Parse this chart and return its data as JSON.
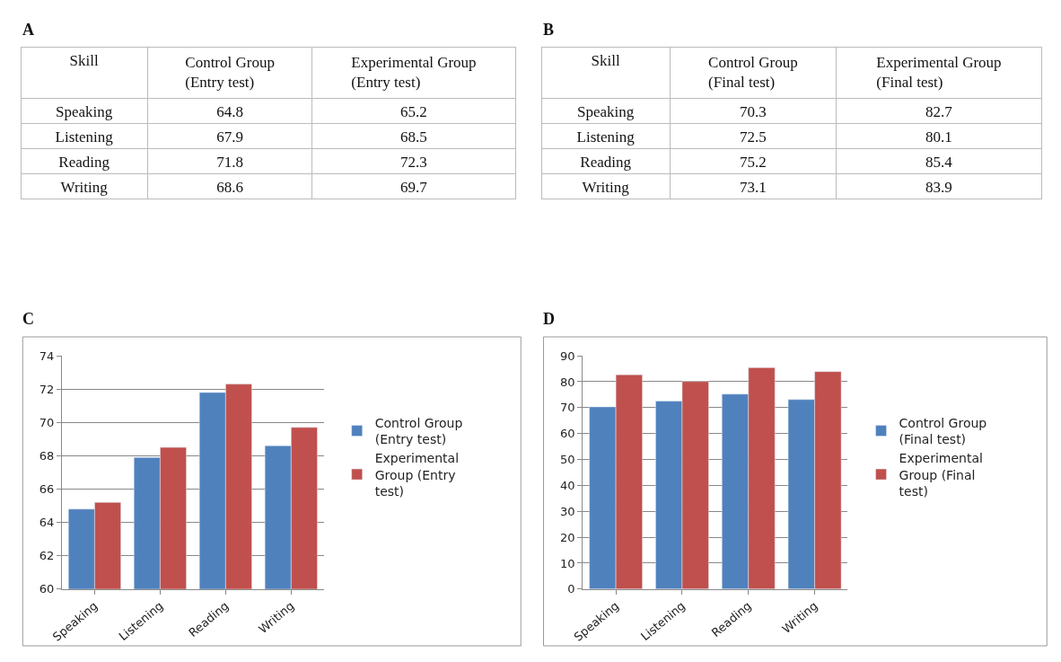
{
  "chart_data": [
    {
      "type": "other",
      "title": "A",
      "data_labels": true,
      "xlabel": "Skill",
      "categories": [
        "Speaking",
        "Listening",
        "Reading",
        "Writing"
      ],
      "series": [
        {
          "name": "Control Group (Entry test)",
          "color": "#ffffff",
          "values": [
            64.8,
            67.9,
            71.8,
            68.6
          ]
        },
        {
          "name": "Experimental Group (Entry test)",
          "color": "#ffffff",
          "values": [
            65.2,
            68.5,
            72.3,
            69.7
          ]
        }
      ]
    },
    {
      "type": "other",
      "title": "B",
      "data_labels": true,
      "xlabel": "Skill",
      "categories": [
        "Speaking",
        "Listening",
        "Reading",
        "Writing"
      ],
      "series": [
        {
          "name": "Control Group (Final test)",
          "color": "#ffffff",
          "values": [
            70.3,
            72.5,
            75.2,
            73.1
          ]
        },
        {
          "name": "Experimental Group (Final test)",
          "color": "#ffffff",
          "values": [
            82.7,
            80.1,
            85.4,
            83.9
          ]
        }
      ]
    },
    {
      "type": "bar",
      "title": "C",
      "categories": [
        "Speaking",
        "Listening",
        "Reading",
        "Writing"
      ],
      "series": [
        {
          "name": "Control Group (Entry test)",
          "color": "#4f81bd",
          "values": [
            64.8,
            67.9,
            71.8,
            68.6
          ]
        },
        {
          "name": "Experimental Group (Entry test)",
          "color": "#c0504d",
          "values": [
            65.2,
            68.5,
            72.3,
            69.7
          ]
        }
      ],
      "ylim": [
        60,
        74
      ],
      "yticks": [
        60,
        62,
        64,
        66,
        68,
        70,
        72,
        74
      ],
      "grid": "y",
      "legend": "right"
    },
    {
      "type": "bar",
      "title": "D",
      "categories": [
        "Speaking",
        "Listening",
        "Reading",
        "Writing"
      ],
      "series": [
        {
          "name": "Control Group (Final test)",
          "color": "#4f81bd",
          "values": [
            70.3,
            72.5,
            75.2,
            73.1
          ]
        },
        {
          "name": "Experimental Group (Final test)",
          "color": "#c0504d",
          "values": [
            82.7,
            80.1,
            85.4,
            83.9
          ]
        }
      ],
      "ylim": [
        0,
        90
      ],
      "yticks": [
        0,
        10,
        20,
        30,
        40,
        50,
        60,
        70,
        80,
        90
      ],
      "grid": "y",
      "legend": "right"
    }
  ]
}
